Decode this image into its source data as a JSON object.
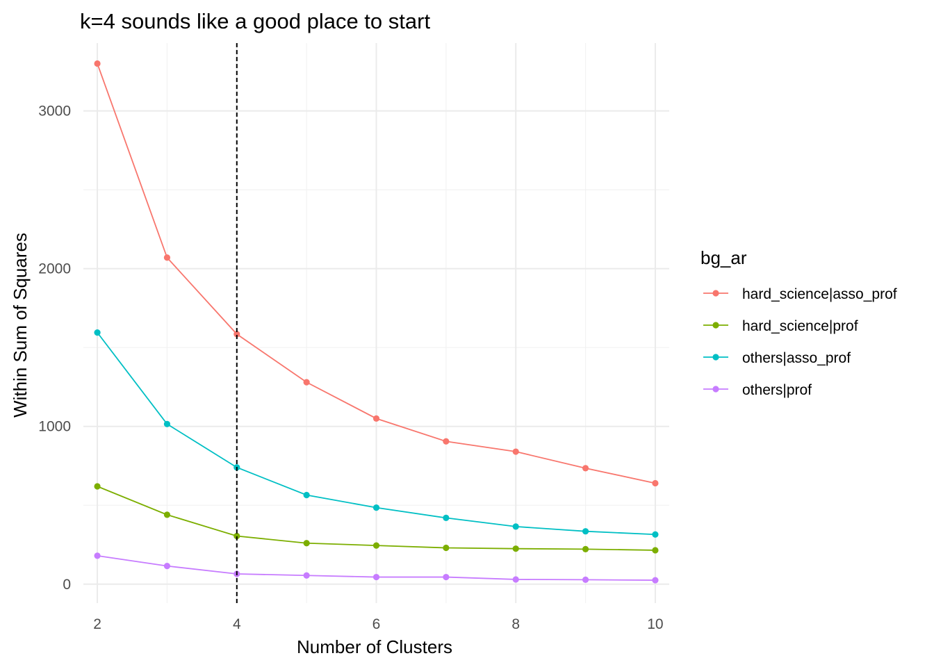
{
  "chart_data": {
    "type": "line",
    "title": "k=4 sounds like a good place to start",
    "xlabel": "Number of Clusters",
    "ylabel": "Within Sum of Squares",
    "x": [
      2,
      3,
      4,
      5,
      6,
      7,
      8,
      9,
      10
    ],
    "xlim": [
      1.8,
      10.2
    ],
    "ylim": [
      -120,
      3430
    ],
    "x_ticks": [
      2,
      4,
      6,
      8,
      10
    ],
    "x_tick_labels": [
      "2",
      "4",
      "6",
      "8",
      "10"
    ],
    "y_ticks": [
      0,
      1000,
      2000,
      3000
    ],
    "y_tick_labels": [
      "0",
      "1000",
      "2000",
      "3000"
    ],
    "y_minor_ticks": [
      500,
      1500,
      2500
    ],
    "x_minor_ticks": [
      3,
      5,
      7,
      9
    ],
    "grid": true,
    "reference_line": {
      "x": 4,
      "style": "dashed",
      "color": "#000000"
    },
    "legend": {
      "title": "bg_ar",
      "position": "right"
    },
    "series": [
      {
        "name": "hard_science|asso_prof",
        "color": "#F8766D",
        "values": [
          3300,
          2070,
          1585,
          1280,
          1050,
          905,
          840,
          735,
          640
        ]
      },
      {
        "name": "hard_science|prof",
        "color": "#7CAE00",
        "values": [
          620,
          440,
          305,
          260,
          245,
          230,
          225,
          222,
          215
        ]
      },
      {
        "name": "others|asso_prof",
        "color": "#00BFC4",
        "values": [
          1595,
          1015,
          740,
          565,
          485,
          420,
          365,
          335,
          315
        ]
      },
      {
        "name": "others|prof",
        "color": "#C77CFF",
        "values": [
          180,
          115,
          65,
          55,
          45,
          45,
          30,
          28,
          25
        ]
      }
    ]
  }
}
